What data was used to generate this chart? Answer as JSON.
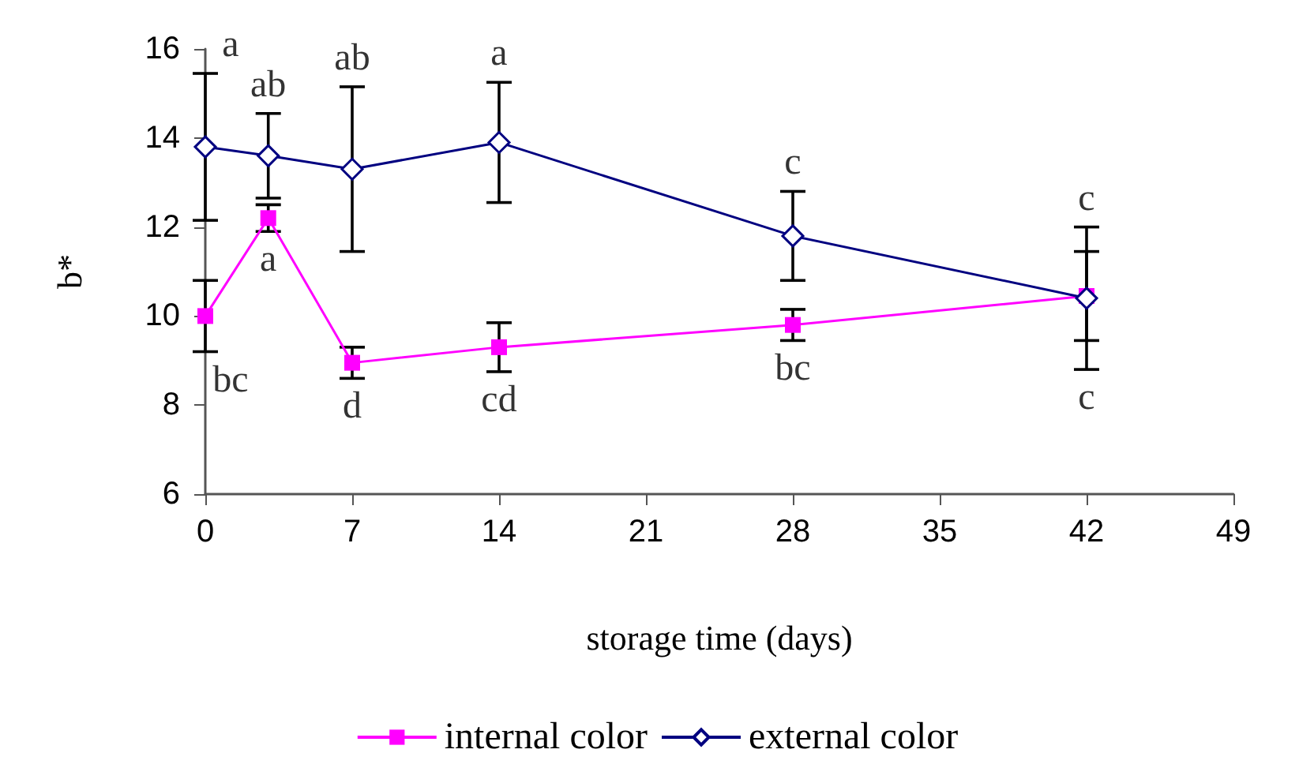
{
  "chart_data": {
    "type": "line",
    "xlabel": "storage time (days)",
    "ylabel": "b*",
    "x": [
      0,
      3,
      7,
      14,
      28,
      42
    ],
    "series": [
      {
        "name": "internal color",
        "color": "#ff00ff",
        "marker": "square",
        "values": [
          10.0,
          12.2,
          8.95,
          9.3,
          9.8,
          10.45
        ],
        "errors": [
          0.8,
          0.3,
          0.35,
          0.55,
          0.35,
          1.0
        ]
      },
      {
        "name": "external color",
        "color": "#000080",
        "marker": "diamond",
        "values": [
          13.8,
          13.6,
          13.3,
          13.9,
          11.8,
          10.4
        ],
        "errors": [
          1.65,
          0.95,
          1.85,
          1.35,
          1.0,
          1.6
        ]
      }
    ],
    "xlim": [
      0,
      49
    ],
    "xticks": [
      0,
      7,
      14,
      21,
      28,
      35,
      42,
      49
    ],
    "ylim": [
      6,
      16
    ],
    "yticks": [
      6,
      8,
      10,
      12,
      14,
      16
    ],
    "grid": false,
    "legend": "bottom",
    "line_style": "solid",
    "annotations": [
      "bc",
      "a",
      "d",
      "cd",
      "bc",
      "c",
      "a",
      "ab",
      "ab",
      "a",
      "c",
      "c"
    ]
  }
}
